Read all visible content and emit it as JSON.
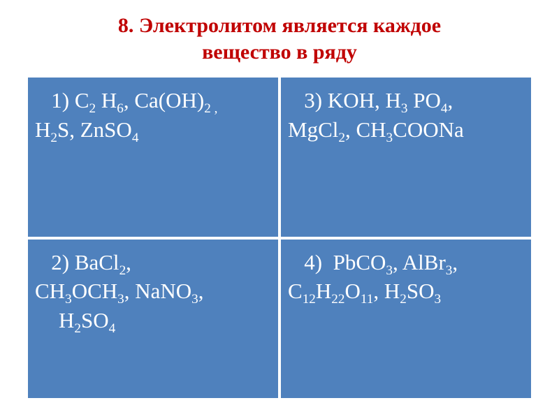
{
  "title_line1": "8. Электролитом является каждое",
  "title_line2": "вещество в ряду",
  "title_color": "#c00000",
  "cell_bg": "#4f81bd",
  "cell_border": "#ffffff",
  "cell_text_color": "#ffffff",
  "cells": {
    "c1": {
      "l1a": "   1) C",
      "l1b": " H",
      "l1c": ", Ca(OH)",
      "l2a": "H",
      "l2b": "S,  ZnSO",
      "s1": "2",
      "s2": "6",
      "s3": "2 ,",
      "s4": "2",
      "s5": "4"
    },
    "c2": {
      "l1a": "   3) KOH, H",
      "l1b": " PO",
      "l1c": ",",
      "l2a": "MgCl",
      "l2b": ", CH",
      "l2c": "COONa",
      "s1": "3",
      "s2": "4",
      "s3": "2",
      "s4": "3"
    },
    "c3": {
      "l1a": "   2) BaCl",
      "l1b": ", ",
      "l2a": "CH",
      "l2b": "OCH",
      "l2c": ", NaNO",
      "l2d": ",",
      "l3a": "H",
      "l3b": "SO",
      "s1": "2",
      "s2": "3",
      "s3": "3",
      "s4": "3",
      "s5": "2",
      "s6": "4"
    },
    "c4": {
      "l1a": "   4)  PbCO",
      "l1b": ",  AlBr",
      "l1c": ",",
      "l2a": "C",
      "l2b": "H",
      "l2c": "O",
      "l2d": ",  H",
      "l2e": "SO",
      "s1": "3",
      "s2": "3",
      "s3": "12",
      "s4": "22",
      "s5": "11",
      "s6": "2",
      "s7": "3"
    }
  }
}
